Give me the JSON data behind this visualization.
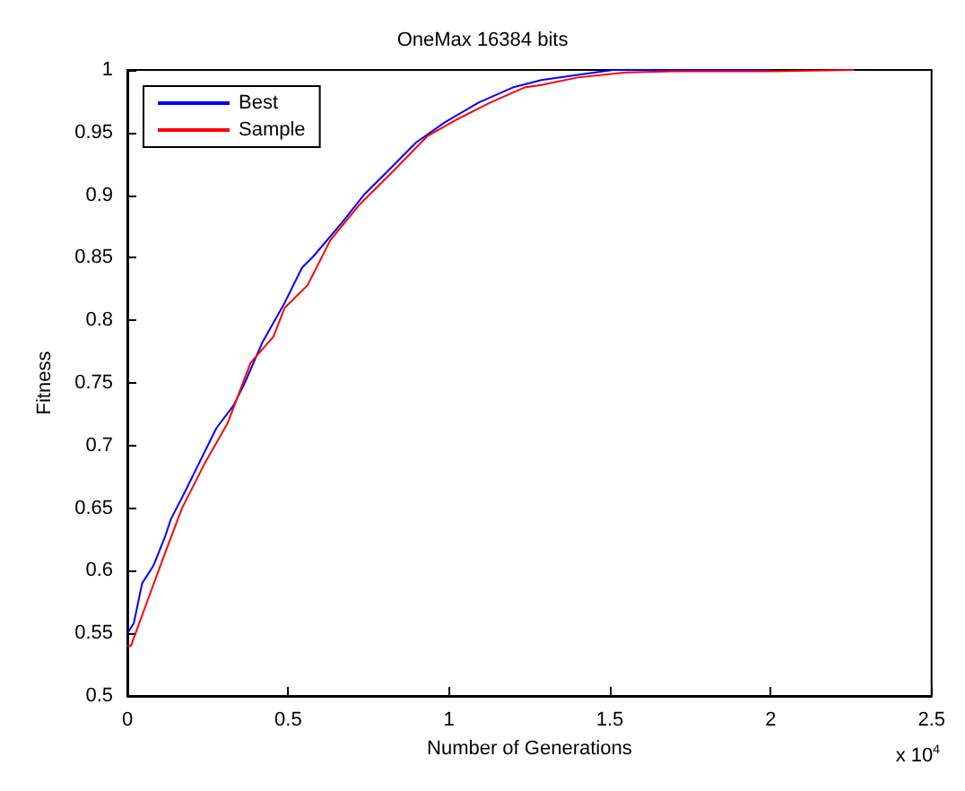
{
  "chart_data": {
    "type": "line",
    "title": "OneMax 16384 bits",
    "xlabel": "Number of Generations",
    "ylabel": "Fitness",
    "annotations": [
      "x 10$^{4}$"
    ],
    "xlim": [
      0,
      2.5
    ],
    "xticks": [
      0,
      0.5,
      1,
      1.5,
      2,
      2.5
    ],
    "ylim": [
      0.5,
      1
    ],
    "yticks": [
      0.5,
      0.55,
      0.6,
      0.65,
      0.7,
      0.75,
      0.8,
      0.85,
      0.9,
      0.95,
      1
    ],
    "grid": false,
    "legend": "top left",
    "marker": "none",
    "line_style": "solid",
    "series": [
      {
        "name": "Best",
        "color": "#0000ff",
        "x": [
          0,
          0.02,
          0.046,
          0.081,
          0.117,
          0.135,
          0.179,
          0.223,
          0.277,
          0.33,
          0.365,
          0.419,
          0.489,
          0.543,
          0.578,
          0.667,
          0.738,
          0.809,
          0.897,
          0.986,
          1.092,
          1.198,
          1.287,
          1.4,
          1.51,
          1.7,
          2.0
        ],
        "values": [
          0.55,
          0.558,
          0.59,
          0.604,
          0.627,
          0.641,
          0.663,
          0.686,
          0.714,
          0.732,
          0.75,
          0.782,
          0.814,
          0.842,
          0.851,
          0.878,
          0.901,
          0.919,
          0.942,
          0.958,
          0.974,
          0.986,
          0.992,
          0.996,
          1,
          1,
          1
        ]
      },
      {
        "name": "Sample",
        "color": "#ff0000",
        "x": [
          0,
          0.011,
          0.064,
          0.117,
          0.17,
          0.241,
          0.312,
          0.383,
          0.454,
          0.489,
          0.56,
          0.631,
          0.72,
          0.826,
          0.932,
          1.021,
          1.128,
          1.234,
          1.287,
          1.4,
          1.55,
          1.7,
          2.0,
          2.26
        ],
        "values": [
          0.54,
          0.54,
          0.577,
          0.614,
          0.65,
          0.686,
          0.718,
          0.766,
          0.787,
          0.81,
          0.828,
          0.864,
          0.892,
          0.919,
          0.947,
          0.96,
          0.974,
          0.986,
          0.988,
          0.994,
          0.998,
          0.999,
          0.999,
          1
        ]
      }
    ]
  }
}
